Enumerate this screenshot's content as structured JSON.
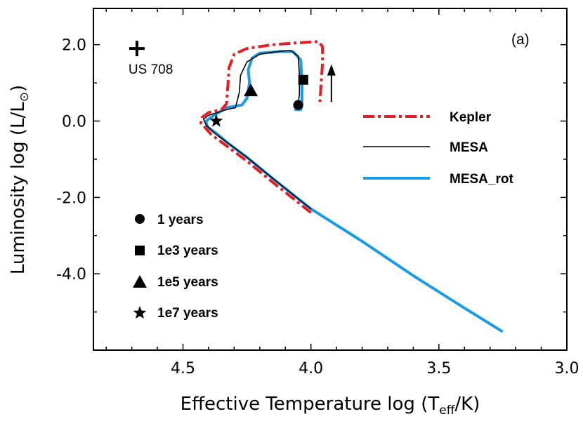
{
  "chart_data": {
    "type": "line",
    "panel_label": "(a)",
    "xlabel": "Effective Temperature  log (T_eff/K)",
    "ylabel": "Luminosity  log (L/L_sun)",
    "xlim": [
      4.85,
      3.0
    ],
    "ylim": [
      -6.0,
      2.95
    ],
    "x_reversed": true,
    "x_ticks": [
      4.5,
      4.0,
      3.5,
      3.0
    ],
    "x_tick_labels": [
      "4.5",
      "4.0",
      "3.5",
      "3.0"
    ],
    "y_ticks": [
      2.0,
      0.0,
      -2.0,
      -4.0
    ],
    "y_tick_labels": [
      "2.0",
      "0.0",
      "-2.0",
      "-4.0"
    ],
    "x_label_parts": {
      "prefix": "Effective Temperature  log (T",
      "sub": "eff",
      "suffix": "/K)"
    },
    "y_label_parts": {
      "prefix": "Luminosity  log (L/L",
      "sub": "⊙",
      "suffix": ")"
    },
    "series": [
      {
        "name": "MESA_rot",
        "color": "#1a9be6",
        "style": "solid",
        "x": [
          3.255,
          3.4,
          3.6,
          3.8,
          4.0,
          4.15,
          4.25,
          4.33,
          4.37,
          4.405,
          4.41,
          4.39,
          4.33,
          4.27,
          4.25,
          4.24,
          4.245,
          4.23,
          4.2,
          4.12,
          4.07,
          4.04,
          4.035,
          4.035,
          4.04,
          4.06
        ],
        "y": [
          -5.5,
          -4.9,
          -4.05,
          -3.15,
          -2.3,
          -1.5,
          -0.95,
          -0.55,
          -0.32,
          -0.15,
          0.0,
          0.1,
          0.35,
          0.42,
          0.6,
          1.0,
          1.35,
          1.65,
          1.78,
          1.82,
          1.82,
          1.6,
          1.0,
          0.4,
          0.3,
          0.3
        ]
      },
      {
        "name": "MESA",
        "color": "#000000",
        "style": "solid",
        "x": [
          4.0,
          4.15,
          4.25,
          4.33,
          4.38,
          4.41,
          4.42,
          4.4,
          4.33,
          4.295,
          4.28,
          4.275,
          4.25,
          4.2,
          4.12,
          4.08,
          4.05,
          4.045,
          4.045,
          4.05
        ],
        "y": [
          -2.3,
          -1.5,
          -0.95,
          -0.55,
          -0.3,
          -0.1,
          0.05,
          0.15,
          0.3,
          0.35,
          0.75,
          1.2,
          1.55,
          1.75,
          1.83,
          1.85,
          1.7,
          1.2,
          0.7,
          0.45
        ]
      },
      {
        "name": "Kepler",
        "color": "#e31e24",
        "style": "dashdot",
        "x": [
          4.0,
          4.15,
          4.25,
          4.33,
          4.39,
          4.43,
          4.425,
          4.4,
          4.35,
          4.33,
          4.325,
          4.32,
          4.3,
          4.25,
          4.15,
          4.05,
          3.97,
          3.955,
          3.955,
          3.96,
          3.965
        ],
        "y": [
          -2.4,
          -1.6,
          -1.05,
          -0.65,
          -0.35,
          -0.05,
          0.1,
          0.22,
          0.3,
          0.45,
          0.9,
          1.4,
          1.75,
          1.9,
          2.0,
          2.05,
          2.08,
          1.95,
          1.5,
          1.0,
          0.5
        ]
      }
    ],
    "markers": [
      {
        "label": "1 years",
        "symbol": "circle",
        "x": 4.05,
        "y": 0.42
      },
      {
        "label": "1e3 years",
        "symbol": "square",
        "x": 4.03,
        "y": 1.08
      },
      {
        "label": "1e5 years",
        "symbol": "triangle",
        "x": 4.235,
        "y": 0.78
      },
      {
        "label": "1e7 years",
        "symbol": "star",
        "x": 4.37,
        "y": 0.0
      }
    ],
    "observed_point": {
      "label": "US 708",
      "symbol": "plus",
      "x": 4.68,
      "y": 1.9
    },
    "arrow": {
      "x": 3.92,
      "y_from": 0.5,
      "y_to": 1.45,
      "direction": "up"
    }
  }
}
